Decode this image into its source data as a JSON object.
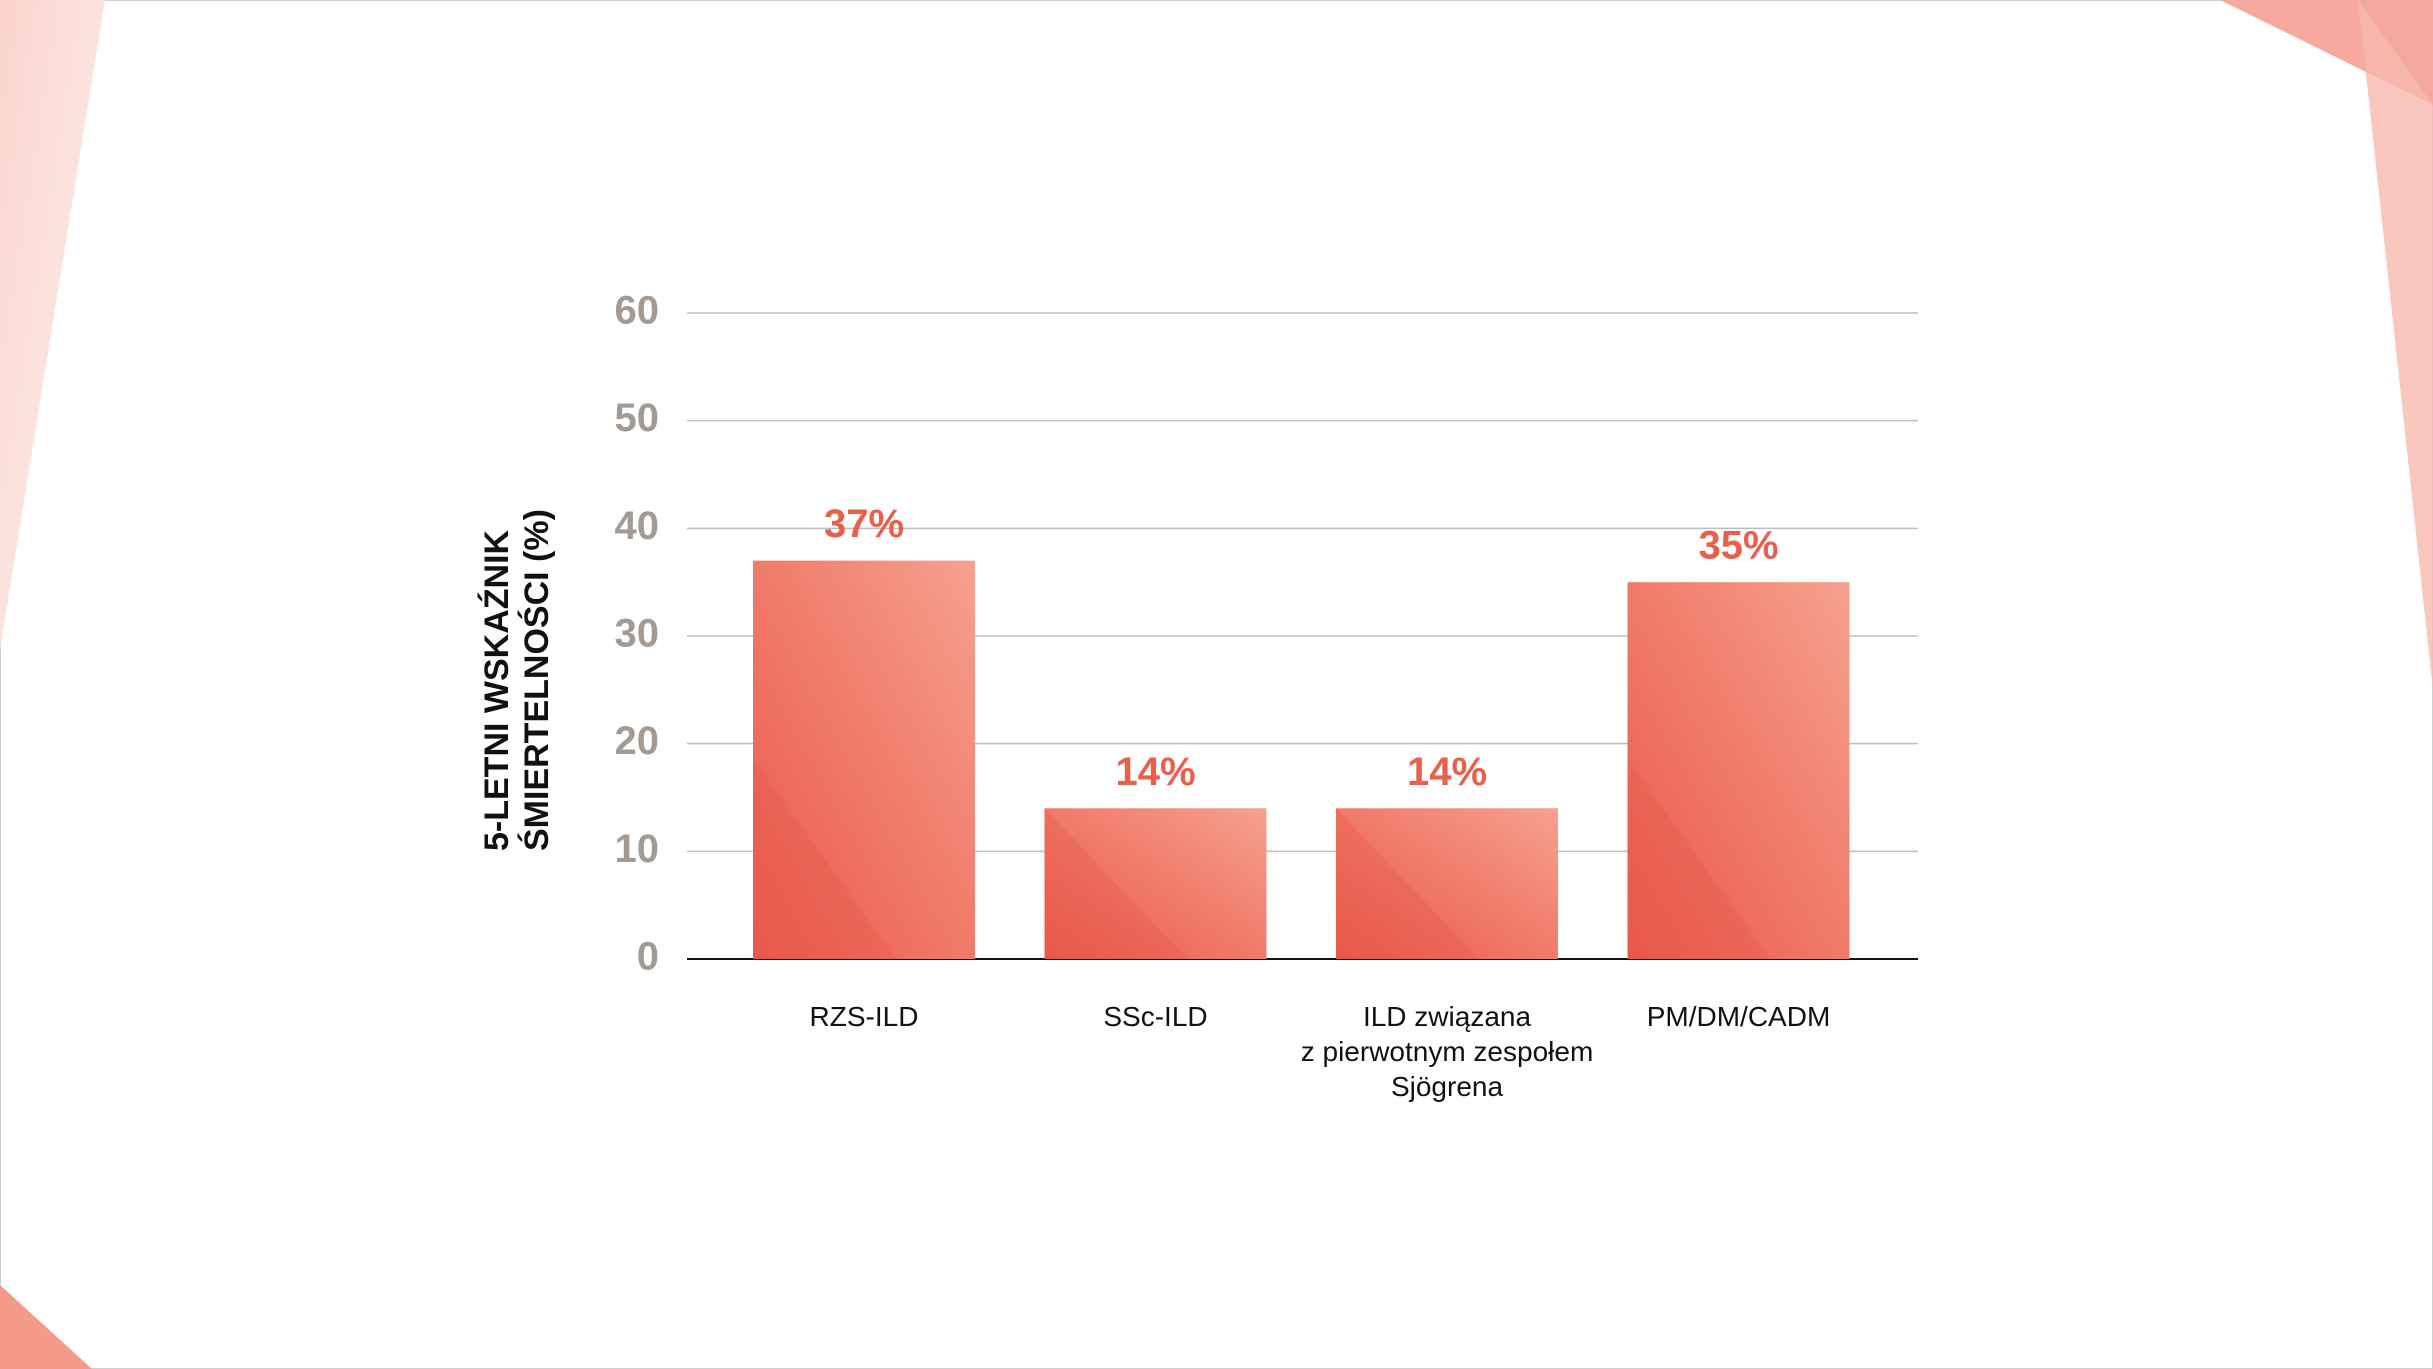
{
  "chart_data": {
    "type": "bar",
    "y_label": "5-LETNI WSKAŹNIK\nŚMIERTELNOŚCI (%)",
    "categories": [
      "RZS-ILD",
      "SSc-ILD",
      "ILD związana\nz pierwotnym zespołem\nSjögrena",
      "PM/DM/CADM"
    ],
    "values": [
      37,
      14,
      14,
      35
    ],
    "value_labels": [
      "37%",
      "14%",
      "14%",
      "35%"
    ],
    "color": "#f17e6d",
    "label_color": "#e8604c",
    "ylim": [
      0,
      60
    ],
    "yticks": [
      0,
      10,
      20,
      30,
      40,
      50,
      60
    ],
    "grid": true
  }
}
